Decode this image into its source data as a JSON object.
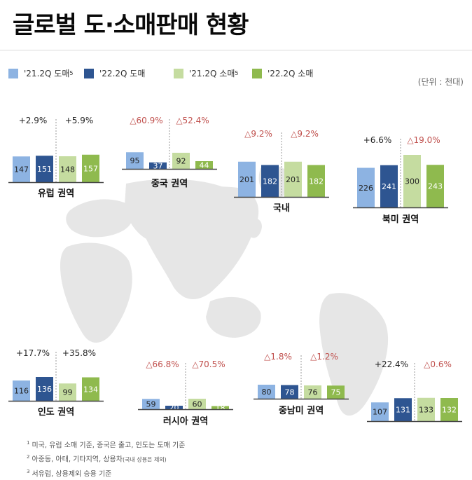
{
  "title": "글로벌 도·소매판매 현황",
  "unit_label": "(단위 : 천대)",
  "legend": [
    {
      "label": "'21.2Q 도매",
      "sup": "5",
      "color": "#8db3e2"
    },
    {
      "label": "'22.2Q 도매",
      "sup": "",
      "color": "#2e5591"
    },
    {
      "label": "'21.2Q 소매",
      "sup": "5",
      "color": "#c5dca0"
    },
    {
      "label": "'22.2Q 소매",
      "sup": "",
      "color": "#8fba4e"
    }
  ],
  "colors": {
    "wholesale_prev": "#8db3e2",
    "wholesale_curr": "#2e5591",
    "retail_prev": "#c5dca0",
    "retail_curr": "#8fba4e",
    "positive_change": "#222222",
    "negative_change": "#c0504d",
    "map": "#e6e6e6"
  },
  "chart_data": [
    {
      "type": "bar",
      "title": "유럽 권역",
      "series": [
        {
          "name": "'21.2Q 도매",
          "values": [
            147
          ]
        },
        {
          "name": "'22.2Q 도매",
          "values": [
            151
          ]
        },
        {
          "name": "'21.2Q 소매",
          "values": [
            148
          ]
        },
        {
          "name": "'22.2Q 소매",
          "values": [
            157
          ]
        }
      ],
      "change_wholesale": "+2.9%",
      "change_retail": "+5.9%"
    },
    {
      "type": "bar",
      "title": "중국 권역",
      "series": [
        {
          "name": "'21.2Q 도매",
          "values": [
            95
          ]
        },
        {
          "name": "'22.2Q 도매",
          "values": [
            37
          ]
        },
        {
          "name": "'21.2Q 소매",
          "values": [
            92
          ]
        },
        {
          "name": "'22.2Q 소매",
          "values": [
            44
          ]
        }
      ],
      "change_wholesale": "△60.9%",
      "change_retail": "△52.4%"
    },
    {
      "type": "bar",
      "title": "국내",
      "series": [
        {
          "name": "'21.2Q 도매",
          "values": [
            201
          ]
        },
        {
          "name": "'22.2Q 도매",
          "values": [
            182
          ]
        },
        {
          "name": "'21.2Q 소매",
          "values": [
            201
          ]
        },
        {
          "name": "'22.2Q 소매",
          "values": [
            182
          ]
        }
      ],
      "change_wholesale": "△9.2%",
      "change_retail": "△9.2%"
    },
    {
      "type": "bar",
      "title": "북미 권역",
      "series": [
        {
          "name": "'21.2Q 도매",
          "values": [
            226
          ]
        },
        {
          "name": "'22.2Q 도매",
          "values": [
            241
          ]
        },
        {
          "name": "'21.2Q 소매",
          "values": [
            300
          ]
        },
        {
          "name": "'22.2Q 소매",
          "values": [
            243
          ]
        }
      ],
      "change_wholesale": "+6.6%",
      "change_retail": "△19.0%"
    },
    {
      "type": "bar",
      "title": "인도 권역",
      "series": [
        {
          "name": "'21.2Q 도매",
          "values": [
            116
          ]
        },
        {
          "name": "'22.2Q 도매",
          "values": [
            136
          ]
        },
        {
          "name": "'21.2Q 소매",
          "values": [
            99
          ]
        },
        {
          "name": "'22.2Q 소매",
          "values": [
            134
          ]
        }
      ],
      "change_wholesale": "+17.7%",
      "change_retail": "+35.8%"
    },
    {
      "type": "bar",
      "title": "러시아 권역",
      "series": [
        {
          "name": "'21.2Q 도매",
          "values": [
            59
          ]
        },
        {
          "name": "'22.2Q 도매",
          "values": [
            20
          ]
        },
        {
          "name": "'21.2Q 소매",
          "values": [
            60
          ]
        },
        {
          "name": "'22.2Q 소매",
          "values": [
            18
          ]
        }
      ],
      "change_wholesale": "△66.8%",
      "change_retail": "△70.5%"
    },
    {
      "type": "bar",
      "title": "중남미 권역",
      "series": [
        {
          "name": "'21.2Q 도매",
          "values": [
            80
          ]
        },
        {
          "name": "'22.2Q 도매",
          "values": [
            78
          ]
        },
        {
          "name": "'21.2Q 소매",
          "values": [
            76
          ]
        },
        {
          "name": "'22.2Q 소매",
          "values": [
            75
          ]
        }
      ],
      "change_wholesale": "△1.8%",
      "change_retail": "△1.2%"
    },
    {
      "type": "bar",
      "title": "",
      "series": [
        {
          "name": "'21.2Q 도매",
          "values": [
            107
          ]
        },
        {
          "name": "'22.2Q 도매",
          "values": [
            131
          ]
        },
        {
          "name": "'21.2Q 소매",
          "values": [
            133
          ]
        },
        {
          "name": "'22.2Q 소매",
          "values": [
            132
          ]
        }
      ],
      "change_wholesale": "+22.4%",
      "change_retail": "△0.6%"
    }
  ],
  "footnotes": [
    {
      "mark": "1",
      "text": "미국, 유럽 소매 기준, 중국은 출고, 인도는 도매 기준",
      "small": ""
    },
    {
      "mark": "2",
      "text": "아중동, 아태, 기타지역, 상용차",
      "small": "(국내 상용은 제외)"
    },
    {
      "mark": "3",
      "text": "서유럽, 상용제외 승용 기준",
      "small": ""
    }
  ]
}
